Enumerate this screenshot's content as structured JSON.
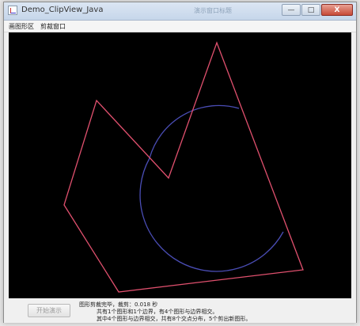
{
  "window": {
    "title": "Demo_ClipView_Java",
    "center_title": "演示窗口标题"
  },
  "controls": {
    "minimize": "—",
    "maximize": "□",
    "close": "X"
  },
  "menu": {
    "items": [
      "画图形区",
      "剪裁窗口"
    ]
  },
  "status": {
    "button_label": "开始演示",
    "line1": "图形剪裁完毕，裁剪：0.018 秒",
    "line2": "共有1个图形和1个边界，有4个图形与边界相交。",
    "line3": "其中4个图形与边界相交，共有8个交点分布，5个剪出新图形。"
  },
  "canvas": {
    "background": "#000000",
    "polygon_color": "#e0506e",
    "circle_color": "#4a4db5"
  }
}
